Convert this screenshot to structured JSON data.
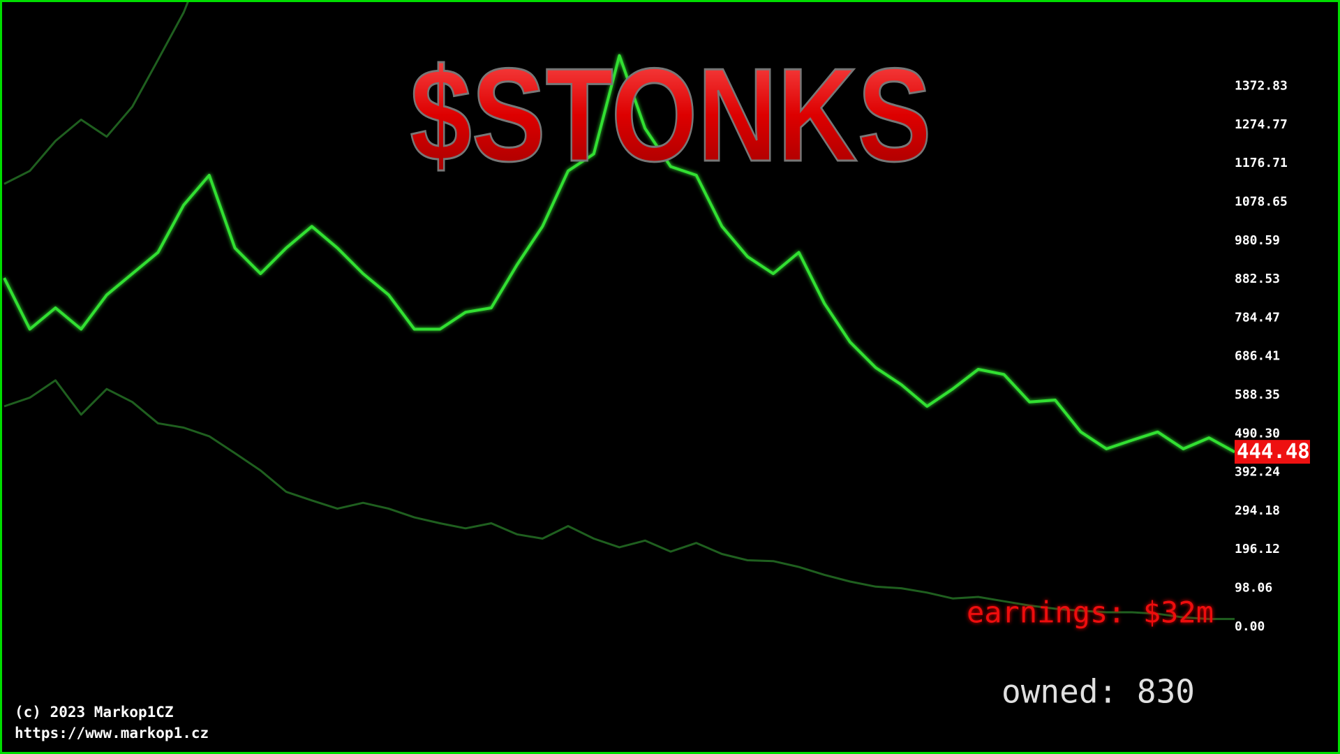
{
  "chart_data": {
    "type": "line",
    "title": "$STONKS",
    "x": [
      0,
      1,
      2,
      3,
      4,
      5,
      6,
      7,
      8,
      9,
      10,
      11,
      12,
      13,
      14,
      15,
      16,
      17,
      18,
      19,
      20,
      21,
      22,
      23,
      24,
      25,
      26,
      27,
      28,
      29,
      30,
      31,
      32,
      33,
      34,
      35,
      36,
      37,
      38,
      39,
      40,
      41,
      42,
      43,
      44,
      45,
      46,
      47,
      48
    ],
    "xlim": [
      0,
      48
    ],
    "ylim": [
      -323,
      1592
    ],
    "yticks": [
      {
        "value": 0,
        "label": "0.00"
      },
      98.06,
      196.12,
      294.18,
      392.24,
      {
        "value": 490.3,
        "label": "490.30"
      },
      588.35,
      686.41,
      784.47,
      882.53,
      980.59,
      1078.65,
      1176.71,
      1274.77,
      1372.83
    ],
    "series": [
      {
        "color": "#1f5f1f",
        "values": [
          1125,
          1158,
          1234,
          1288,
          1245,
          1321,
          1440,
          1560,
          1722,
          null,
          null,
          null,
          null,
          null,
          null,
          null,
          null,
          null,
          null,
          null,
          null,
          null,
          null,
          null,
          null,
          null,
          null,
          null,
          null,
          null,
          null,
          null,
          null,
          null,
          null,
          null,
          null,
          null,
          null,
          null,
          null,
          null,
          null,
          null,
          null,
          null,
          null,
          null,
          null
        ]
      },
      {
        "color": "#1f5f1f",
        "values": [
          560,
          582,
          626,
          539,
          604,
          571,
          517,
          506,
          484,
          441,
          397,
          343,
          321,
          300,
          315,
          300,
          278,
          263,
          250,
          263,
          235,
          224,
          256,
          224,
          202,
          219,
          191,
          213,
          185,
          169,
          167,
          152,
          132,
          115,
          102,
          98,
          87,
          72,
          76,
          65,
          54,
          46,
          41,
          37,
          37,
          33,
          24,
          20,
          20
        ]
      },
      {
        "color": "#33e033",
        "values": [
          886,
          756,
          810,
          756,
          843,
          897,
          951,
          1071,
          1147,
          962,
          897,
          962,
          1017,
          962,
          897,
          843,
          756,
          756,
          799,
          810,
          919,
          1017,
          1158,
          1201,
          1451,
          1266,
          1169,
          1147,
          1017,
          940,
          897,
          951,
          821,
          723,
          658,
          615,
          560,
          604,
          654,
          641,
          571,
          576,
          495,
          452,
          474,
          495,
          452,
          480,
          444
        ]
      }
    ],
    "current_price": 444.48,
    "current_color": "#ee1111"
  },
  "hud": {
    "earnings": "earnings: $32m",
    "owned": "owned: 830"
  },
  "footer": {
    "copyright": "(c) 2023 Markop1CZ",
    "url": "https://www.markop1.cz"
  }
}
